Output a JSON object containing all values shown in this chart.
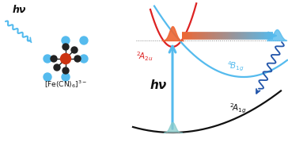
{
  "fig_width": 3.64,
  "fig_height": 1.89,
  "dpi": 100,
  "bg_color": "#ffffff",
  "hv_left_text": "hν",
  "hv_center_text": "hν",
  "color_red": "#dd2222",
  "color_lightblue": "#55bbee",
  "color_darkblue": "#2255aa",
  "color_black": "#111111",
  "color_orange": "#ee6633",
  "color_teal": "#88cccc",
  "color_gray": "#888888"
}
